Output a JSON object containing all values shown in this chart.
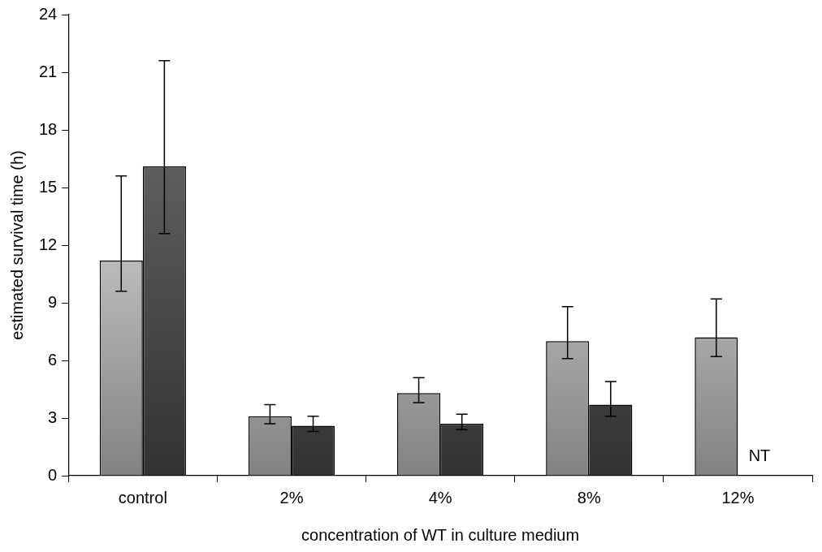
{
  "chart_data": {
    "type": "bar",
    "xlabel": "concentration of WT in culture medium",
    "ylabel": "estimated survival time (h)",
    "categories": [
      "control",
      "2%",
      "4%",
      "8%",
      "12%"
    ],
    "series": [
      {
        "color": "#c8c8c8",
        "values": [
          11.2,
          3.1,
          4.3,
          7.0,
          7.2
        ],
        "errors": [
          [
            9.6,
            15.6
          ],
          [
            2.7,
            3.7
          ],
          [
            3.8,
            5.1
          ],
          [
            6.1,
            8.8
          ],
          [
            6.2,
            9.2
          ]
        ]
      },
      {
        "color": "#5a5a5a",
        "values": [
          16.1,
          2.6,
          2.7,
          3.7,
          null
        ],
        "errors": [
          [
            12.6,
            21.6
          ],
          [
            2.3,
            3.1
          ],
          [
            2.4,
            3.2
          ],
          [
            3.1,
            4.9
          ],
          null
        ]
      }
    ],
    "annotations": [
      {
        "text": "NT",
        "x": "12%",
        "y": 1
      }
    ],
    "ylim": [
      0,
      24
    ],
    "yticks": [
      0,
      3,
      6,
      9,
      12,
      15,
      18,
      21,
      24
    ],
    "grid": false,
    "legend": false
  }
}
